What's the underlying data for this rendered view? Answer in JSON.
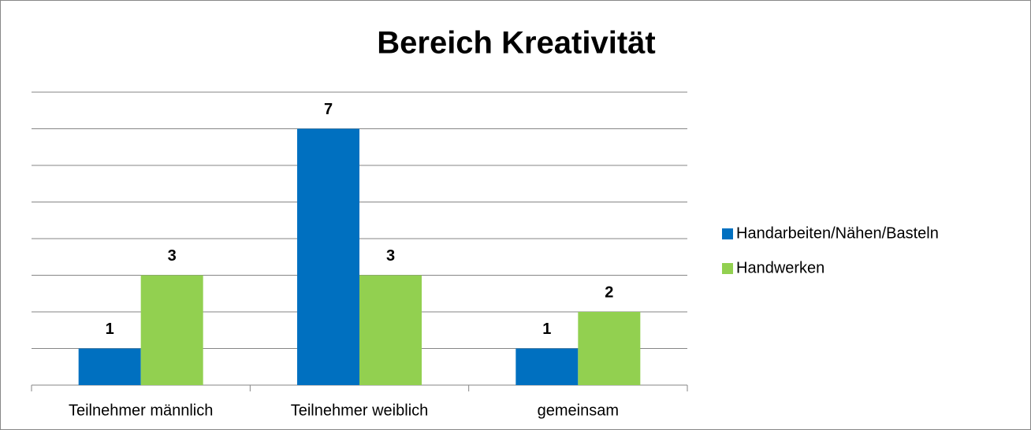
{
  "chart_data": {
    "type": "bar",
    "title": "Bereich Kreativität",
    "categories": [
      "Teilnehmer männlich",
      "Teilnehmer weiblich",
      "gemeinsam"
    ],
    "series": [
      {
        "name": "Handarbeiten/Nähen/Basteln",
        "color": "#0070c0",
        "values": [
          1,
          7,
          1
        ]
      },
      {
        "name": "Handwerken",
        "color": "#92d050",
        "values": [
          3,
          3,
          2
        ]
      }
    ],
    "ylim": [
      0,
      8
    ],
    "yticks": [
      0,
      1,
      2,
      3,
      4,
      5,
      6,
      7,
      8
    ],
    "grid": true,
    "legend": "right"
  }
}
